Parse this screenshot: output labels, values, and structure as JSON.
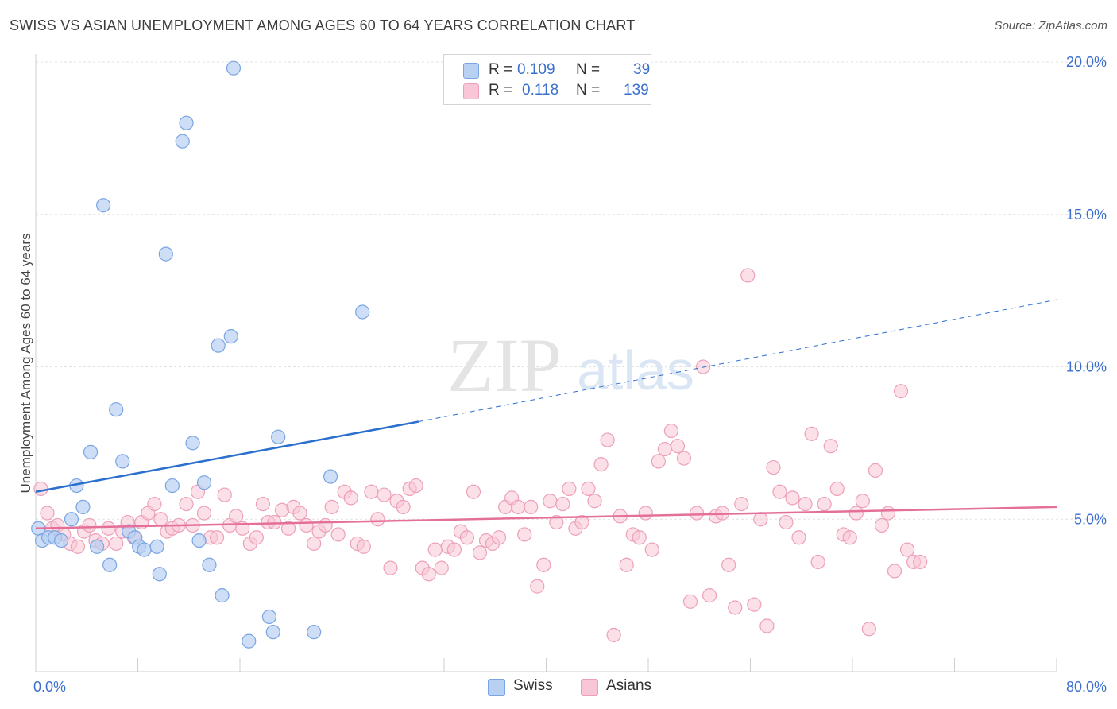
{
  "header": {
    "title": "SWISS VS ASIAN UNEMPLOYMENT AMONG AGES 60 TO 64 YEARS CORRELATION CHART",
    "source": "Source: ZipAtlas.com"
  },
  "watermark": {
    "zip": "ZIP",
    "atlas": "atlas"
  },
  "legend": {
    "r_label": "R =",
    "n_label": "N =",
    "swiss": {
      "r": "0.109",
      "n": "39",
      "name": "Swiss"
    },
    "asians": {
      "r": "0.118",
      "n": "139",
      "name": "Asians"
    }
  },
  "colors": {
    "swiss_fill": "#b8d0f2",
    "swiss_stroke": "#7aa5e3",
    "swiss_line": "#2b6fce",
    "asians_fill": "#f8c6d6",
    "asians_stroke": "#eda0b9",
    "asians_line": "#e4709a",
    "grid": "#e2e2e2",
    "tick_label": "#3a6fcf"
  },
  "chart_data": {
    "type": "scatter",
    "title": "SWISS VS ASIAN UNEMPLOYMENT AMONG AGES 60 TO 64 YEARS CORRELATION CHART",
    "xlabel": "",
    "ylabel": "Unemployment Among Ages 60 to 64 years",
    "xlim": [
      0,
      80
    ],
    "ylim": [
      0,
      20
    ],
    "x_tick_labels": [
      "0.0%",
      "80.0%"
    ],
    "y_ticks": [
      5,
      10,
      15,
      20
    ],
    "y_tick_labels": [
      "5.0%",
      "10.0%",
      "15.0%",
      "20.0%"
    ],
    "grid": true,
    "legend_position": "top-center",
    "series": [
      {
        "name": "Swiss",
        "r": 0.109,
        "n": 39,
        "trend": {
          "x0": 0,
          "y0": 5.9,
          "x1_solid": 30,
          "y1_solid": 8.2,
          "x1": 80,
          "y1": 12.2
        },
        "points": [
          [
            0.2,
            4.7
          ],
          [
            0.5,
            4.3
          ],
          [
            1.0,
            4.4
          ],
          [
            1.5,
            4.4
          ],
          [
            2.0,
            4.3
          ],
          [
            2.8,
            5.0
          ],
          [
            3.2,
            6.1
          ],
          [
            3.7,
            5.4
          ],
          [
            4.3,
            7.2
          ],
          [
            4.8,
            4.1
          ],
          [
            5.3,
            15.3
          ],
          [
            5.8,
            3.5
          ],
          [
            6.3,
            8.6
          ],
          [
            6.8,
            6.9
          ],
          [
            7.3,
            4.6
          ],
          [
            7.8,
            4.4
          ],
          [
            8.1,
            4.1
          ],
          [
            8.5,
            4.0
          ],
          [
            9.5,
            4.1
          ],
          [
            9.7,
            3.2
          ],
          [
            10.2,
            13.7
          ],
          [
            10.7,
            6.1
          ],
          [
            11.5,
            17.4
          ],
          [
            11.8,
            18.0
          ],
          [
            12.3,
            7.5
          ],
          [
            12.8,
            4.3
          ],
          [
            13.2,
            6.2
          ],
          [
            13.6,
            3.5
          ],
          [
            14.3,
            10.7
          ],
          [
            14.6,
            2.5
          ],
          [
            15.3,
            11.0
          ],
          [
            15.5,
            19.8
          ],
          [
            16.7,
            1.0
          ],
          [
            18.3,
            1.8
          ],
          [
            18.6,
            1.3
          ],
          [
            19.0,
            7.7
          ],
          [
            21.8,
            1.3
          ],
          [
            23.1,
            6.4
          ],
          [
            25.6,
            11.8
          ]
        ]
      },
      {
        "name": "Asians",
        "r": 0.118,
        "n": 139,
        "trend": {
          "x0": 0,
          "y0": 4.7,
          "x1": 80,
          "y1": 5.4
        },
        "points": [
          [
            0.4,
            6.0
          ],
          [
            0.9,
            5.2
          ],
          [
            1.3,
            4.7
          ],
          [
            1.7,
            4.8
          ],
          [
            2.2,
            4.5
          ],
          [
            2.7,
            4.2
          ],
          [
            3.3,
            4.1
          ],
          [
            3.8,
            4.6
          ],
          [
            4.2,
            4.8
          ],
          [
            4.7,
            4.3
          ],
          [
            5.2,
            4.2
          ],
          [
            5.7,
            4.7
          ],
          [
            6.3,
            4.2
          ],
          [
            6.8,
            4.6
          ],
          [
            7.2,
            4.9
          ],
          [
            7.7,
            4.4
          ],
          [
            8.3,
            4.9
          ],
          [
            8.8,
            5.2
          ],
          [
            9.3,
            5.5
          ],
          [
            9.8,
            5.0
          ],
          [
            10.3,
            4.6
          ],
          [
            10.7,
            4.7
          ],
          [
            11.2,
            4.8
          ],
          [
            11.8,
            5.5
          ],
          [
            12.3,
            4.8
          ],
          [
            12.7,
            5.9
          ],
          [
            13.2,
            5.2
          ],
          [
            13.7,
            4.4
          ],
          [
            14.2,
            4.4
          ],
          [
            14.8,
            5.8
          ],
          [
            15.2,
            4.8
          ],
          [
            15.7,
            5.1
          ],
          [
            16.2,
            4.7
          ],
          [
            16.8,
            4.2
          ],
          [
            17.3,
            4.4
          ],
          [
            17.8,
            5.5
          ],
          [
            18.2,
            4.9
          ],
          [
            18.7,
            4.9
          ],
          [
            19.3,
            5.3
          ],
          [
            19.8,
            4.7
          ],
          [
            20.2,
            5.4
          ],
          [
            20.7,
            5.2
          ],
          [
            21.2,
            4.8
          ],
          [
            21.8,
            4.2
          ],
          [
            22.2,
            4.6
          ],
          [
            22.7,
            4.8
          ],
          [
            23.2,
            5.4
          ],
          [
            23.7,
            4.5
          ],
          [
            24.2,
            5.9
          ],
          [
            24.7,
            5.7
          ],
          [
            25.2,
            4.2
          ],
          [
            25.7,
            4.1
          ],
          [
            26.3,
            5.9
          ],
          [
            26.8,
            5.0
          ],
          [
            27.3,
            5.8
          ],
          [
            27.8,
            3.4
          ],
          [
            28.3,
            5.6
          ],
          [
            28.8,
            5.4
          ],
          [
            29.3,
            6.0
          ],
          [
            29.8,
            6.1
          ],
          [
            30.3,
            3.4
          ],
          [
            30.8,
            3.2
          ],
          [
            31.3,
            4.0
          ],
          [
            31.8,
            3.4
          ],
          [
            32.3,
            4.1
          ],
          [
            32.8,
            4.0
          ],
          [
            33.3,
            4.6
          ],
          [
            33.8,
            4.4
          ],
          [
            34.3,
            5.9
          ],
          [
            34.8,
            3.9
          ],
          [
            35.3,
            4.3
          ],
          [
            35.8,
            4.2
          ],
          [
            36.3,
            4.4
          ],
          [
            36.8,
            5.4
          ],
          [
            37.3,
            5.7
          ],
          [
            37.8,
            5.4
          ],
          [
            38.3,
            4.5
          ],
          [
            38.8,
            5.4
          ],
          [
            39.3,
            2.8
          ],
          [
            39.8,
            3.5
          ],
          [
            40.3,
            5.6
          ],
          [
            40.8,
            4.9
          ],
          [
            41.3,
            5.5
          ],
          [
            41.8,
            6.0
          ],
          [
            42.3,
            4.7
          ],
          [
            42.8,
            4.9
          ],
          [
            43.3,
            6.0
          ],
          [
            43.8,
            5.6
          ],
          [
            44.3,
            6.8
          ],
          [
            44.8,
            7.6
          ],
          [
            45.3,
            1.2
          ],
          [
            45.8,
            5.1
          ],
          [
            46.3,
            3.5
          ],
          [
            46.8,
            4.5
          ],
          [
            47.3,
            4.4
          ],
          [
            47.8,
            5.2
          ],
          [
            48.3,
            4.0
          ],
          [
            48.8,
            6.9
          ],
          [
            49.3,
            7.3
          ],
          [
            49.8,
            7.9
          ],
          [
            50.3,
            7.4
          ],
          [
            50.8,
            7.0
          ],
          [
            51.3,
            2.3
          ],
          [
            51.8,
            5.2
          ],
          [
            52.3,
            10.0
          ],
          [
            52.8,
            2.5
          ],
          [
            53.3,
            5.1
          ],
          [
            53.8,
            5.2
          ],
          [
            54.3,
            3.5
          ],
          [
            54.8,
            2.1
          ],
          [
            55.3,
            5.5
          ],
          [
            55.8,
            13.0
          ],
          [
            56.3,
            2.2
          ],
          [
            56.8,
            5.0
          ],
          [
            57.3,
            1.5
          ],
          [
            57.8,
            6.7
          ],
          [
            58.3,
            5.9
          ],
          [
            58.8,
            4.9
          ],
          [
            59.3,
            5.7
          ],
          [
            59.8,
            4.4
          ],
          [
            60.3,
            5.5
          ],
          [
            60.8,
            7.8
          ],
          [
            61.3,
            3.6
          ],
          [
            61.8,
            5.5
          ],
          [
            62.3,
            7.4
          ],
          [
            62.8,
            6.0
          ],
          [
            63.3,
            4.5
          ],
          [
            63.8,
            4.4
          ],
          [
            64.3,
            5.2
          ],
          [
            64.8,
            5.6
          ],
          [
            65.3,
            1.4
          ],
          [
            65.8,
            6.6
          ],
          [
            66.3,
            4.8
          ],
          [
            66.8,
            5.2
          ],
          [
            67.3,
            3.3
          ],
          [
            67.8,
            9.2
          ],
          [
            68.3,
            4.0
          ],
          [
            68.8,
            3.6
          ],
          [
            69.3,
            3.6
          ]
        ]
      }
    ]
  }
}
